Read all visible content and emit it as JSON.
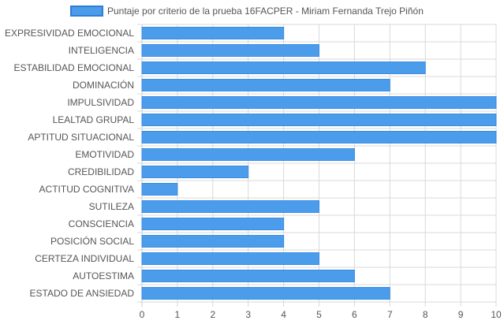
{
  "chart_data": {
    "type": "bar",
    "orientation": "horizontal",
    "categories": [
      "EXPRESIVIDAD EMOCIONAL",
      "INTELIGENCIA",
      "ESTABILIDAD EMOCIONAL",
      "DOMINACIÓN",
      "IMPULSIVIDAD",
      "LEALTAD GRUPAL",
      "APTITUD SITUACIONAL",
      "EMOTIVIDAD",
      "CREDIBILIDAD",
      "ACTITUD COGNITIVA",
      "SUTILEZA",
      "CONSCIENCIA",
      "POSICIÓN SOCIAL",
      "CERTEZA INDIVIDUAL",
      "AUTOESTIMA",
      "ESTADO DE ANSIEDAD"
    ],
    "series": [
      {
        "name": "Puntaje por criterio de la prueba 16FACPER - Miriam Fernanda Trejo Piñón",
        "values": [
          4,
          5,
          8,
          7,
          10,
          10,
          10,
          6,
          3,
          1,
          5,
          4,
          4,
          5,
          6,
          7
        ]
      }
    ],
    "x_ticks": [
      "0",
      "1",
      "2",
      "3",
      "4",
      "5",
      "6",
      "7",
      "8",
      "9",
      "10"
    ],
    "xlim": [
      0,
      10
    ],
    "grid": true,
    "legend_position": "top",
    "colors": {
      "bar_fill": "#4b9ceb",
      "bar_stroke": "#3b8de0",
      "legend_border": "#2f7fd1",
      "grid": "#d9d9d9",
      "axis_line": "#c8c8c8",
      "text": "#555555"
    }
  }
}
